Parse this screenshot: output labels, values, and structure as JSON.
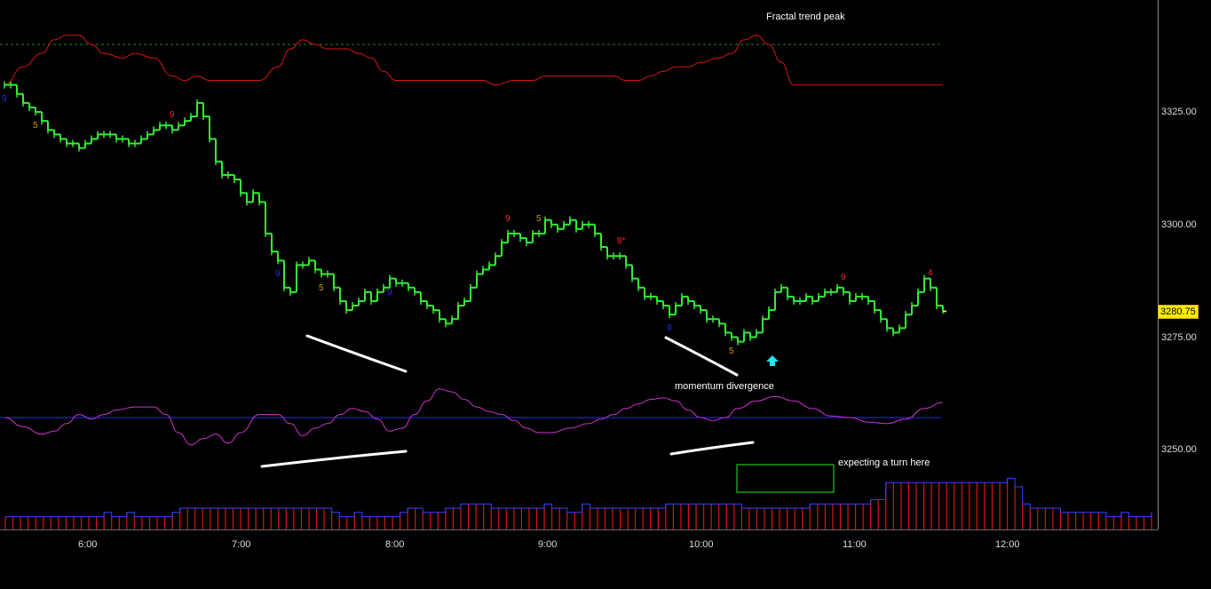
{
  "chart_data": {
    "type": "line",
    "instrument_type": "intraday price bars with oscillator and volume panels",
    "price_axis": {
      "ticks": [
        3325,
        3300,
        3275,
        3250
      ],
      "tick_labels": [
        "3325.00",
        "3300.00",
        "3275.00",
        "3250.00"
      ]
    },
    "time_axis": {
      "tick_labels": [
        "6:00",
        "7:00",
        "8:00",
        "9:00",
        "10:00",
        "11:00",
        "12:00"
      ]
    },
    "last_price_label": "3280.75",
    "last_price": 3280.75,
    "colors": {
      "price": "#33ee33",
      "trend_line": "#d81515",
      "oscillator": "#cc33cc",
      "zero_line": "#2a2aee",
      "volume": "#d81515",
      "volume_cap": "#3344ff",
      "annotation": "#ffffff",
      "box": "#1a9a1a",
      "arrow": "#22e6f0",
      "price_box": "#ffeb00"
    },
    "price_series": [
      [
        0,
        3331
      ],
      [
        1,
        3331
      ],
      [
        2,
        3329
      ],
      [
        3,
        3327
      ],
      [
        4,
        3326
      ],
      [
        5,
        3325
      ],
      [
        6,
        3323
      ],
      [
        7,
        3321
      ],
      [
        8,
        3320
      ],
      [
        9,
        3319
      ],
      [
        10,
        3318
      ],
      [
        11,
        3318
      ],
      [
        12,
        3317
      ],
      [
        13,
        3318
      ],
      [
        14,
        3319
      ],
      [
        15,
        3320
      ],
      [
        16,
        3320
      ],
      [
        17,
        3320
      ],
      [
        18,
        3319
      ],
      [
        19,
        3319
      ],
      [
        20,
        3318
      ],
      [
        21,
        3318
      ],
      [
        22,
        3319
      ],
      [
        23,
        3320
      ],
      [
        24,
        3321
      ],
      [
        25,
        3322
      ],
      [
        26,
        3322
      ],
      [
        27,
        3321
      ],
      [
        28,
        3322
      ],
      [
        29,
        3323
      ],
      [
        30,
        3324
      ],
      [
        31,
        3327
      ],
      [
        32,
        3324
      ],
      [
        33,
        3319
      ],
      [
        34,
        3314
      ],
      [
        35,
        3311
      ],
      [
        36,
        3311
      ],
      [
        37,
        3310
      ],
      [
        38,
        3307
      ],
      [
        39,
        3305
      ],
      [
        40,
        3307
      ],
      [
        41,
        3305
      ],
      [
        42,
        3298
      ],
      [
        43,
        3294
      ],
      [
        44,
        3292
      ],
      [
        45,
        3286
      ],
      [
        46,
        3285
      ],
      [
        47,
        3291
      ],
      [
        48,
        3291
      ],
      [
        49,
        3292
      ],
      [
        50,
        3290
      ],
      [
        51,
        3289
      ],
      [
        52,
        3289
      ],
      [
        53,
        3286
      ],
      [
        54,
        3283
      ],
      [
        55,
        3281
      ],
      [
        56,
        3282
      ],
      [
        57,
        3283
      ],
      [
        58,
        3285
      ],
      [
        59,
        3283
      ],
      [
        60,
        3285
      ],
      [
        61,
        3286
      ],
      [
        62,
        3288
      ],
      [
        63,
        3287
      ],
      [
        64,
        3287
      ],
      [
        65,
        3286
      ],
      [
        66,
        3285
      ],
      [
        67,
        3283
      ],
      [
        68,
        3282
      ],
      [
        69,
        3281
      ],
      [
        70,
        3279
      ],
      [
        71,
        3278
      ],
      [
        72,
        3279
      ],
      [
        73,
        3282
      ],
      [
        74,
        3283
      ],
      [
        75,
        3286
      ],
      [
        76,
        3289
      ],
      [
        77,
        3290
      ],
      [
        78,
        3291
      ],
      [
        79,
        3293
      ],
      [
        80,
        3296
      ],
      [
        81,
        3298
      ],
      [
        82,
        3298
      ],
      [
        83,
        3297
      ],
      [
        84,
        3296
      ],
      [
        85,
        3298
      ],
      [
        86,
        3298
      ],
      [
        87,
        3301
      ],
      [
        88,
        3300
      ],
      [
        89,
        3299
      ],
      [
        90,
        3300
      ],
      [
        91,
        3301
      ],
      [
        92,
        3299
      ],
      [
        93,
        3300
      ],
      [
        94,
        3300
      ],
      [
        95,
        3298
      ],
      [
        96,
        3295
      ],
      [
        97,
        3293
      ],
      [
        98,
        3293
      ],
      [
        99,
        3293
      ],
      [
        100,
        3291
      ],
      [
        101,
        3288
      ],
      [
        102,
        3286
      ],
      [
        103,
        3284
      ],
      [
        104,
        3284
      ],
      [
        105,
        3283
      ],
      [
        106,
        3282
      ],
      [
        107,
        3280
      ],
      [
        108,
        3282
      ],
      [
        109,
        3284
      ],
      [
        110,
        3283
      ],
      [
        111,
        3282
      ],
      [
        112,
        3281
      ],
      [
        113,
        3279
      ],
      [
        114,
        3279
      ],
      [
        115,
        3278
      ],
      [
        116,
        3276
      ],
      [
        117,
        3275
      ],
      [
        118,
        3274
      ],
      [
        119,
        3276
      ],
      [
        120,
        3275
      ],
      [
        121,
        3276
      ],
      [
        122,
        3279
      ],
      [
        123,
        3281
      ],
      [
        124,
        3285
      ],
      [
        125,
        3286
      ],
      [
        126,
        3284
      ],
      [
        127,
        3283
      ],
      [
        128,
        3283
      ],
      [
        129,
        3284
      ],
      [
        130,
        3283
      ],
      [
        131,
        3284
      ],
      [
        132,
        3285
      ],
      [
        133,
        3285
      ],
      [
        134,
        3286
      ],
      [
        135,
        3285
      ],
      [
        136,
        3283
      ],
      [
        137,
        3284
      ],
      [
        138,
        3284
      ],
      [
        139,
        3283
      ],
      [
        140,
        3281
      ],
      [
        141,
        3279
      ],
      [
        142,
        3277
      ],
      [
        143,
        3276
      ],
      [
        144,
        3277
      ],
      [
        145,
        3280
      ],
      [
        146,
        3282
      ],
      [
        147,
        3285
      ],
      [
        148,
        3288
      ],
      [
        149,
        3286
      ],
      [
        150,
        3282
      ],
      [
        151,
        3281
      ]
    ],
    "trend_line_series": [
      [
        0,
        3331
      ],
      [
        3,
        3335
      ],
      [
        6,
        3338
      ],
      [
        8,
        3341
      ],
      [
        10,
        3342
      ],
      [
        12,
        3342
      ],
      [
        14,
        3340
      ],
      [
        16,
        3338
      ],
      [
        19,
        3337
      ],
      [
        21,
        3338
      ],
      [
        24,
        3337
      ],
      [
        27,
        3333
      ],
      [
        29,
        3332
      ],
      [
        31,
        3333
      ],
      [
        33,
        3332
      ],
      [
        36,
        3332
      ],
      [
        38,
        3332
      ],
      [
        41,
        3332
      ],
      [
        44,
        3335
      ],
      [
        46,
        3339
      ],
      [
        48,
        3341
      ],
      [
        50,
        3340
      ],
      [
        52,
        3339
      ],
      [
        55,
        3339
      ],
      [
        57,
        3338
      ],
      [
        59,
        3337
      ],
      [
        61,
        3334
      ],
      [
        63,
        3332
      ],
      [
        65,
        3332
      ],
      [
        67,
        3332
      ],
      [
        69,
        3332
      ],
      [
        71,
        3332
      ],
      [
        73,
        3332
      ],
      [
        75,
        3332
      ],
      [
        77,
        3332
      ],
      [
        79,
        3331
      ],
      [
        82,
        3332
      ],
      [
        85,
        3332
      ],
      [
        87,
        3333
      ],
      [
        89,
        3333
      ],
      [
        92,
        3333
      ],
      [
        94,
        3333
      ],
      [
        96,
        3333
      ],
      [
        98,
        3333
      ],
      [
        100,
        3332
      ],
      [
        102,
        3332
      ],
      [
        104,
        3333
      ],
      [
        106,
        3334
      ],
      [
        108,
        3335
      ],
      [
        110,
        3335
      ],
      [
        112,
        3336
      ],
      [
        115,
        3337
      ],
      [
        117,
        3338
      ],
      [
        119,
        3341
      ],
      [
        121,
        3342
      ],
      [
        123,
        3340
      ],
      [
        125,
        3336
      ],
      [
        127,
        3331
      ],
      [
        129,
        3331
      ],
      [
        132,
        3331
      ],
      [
        135,
        3331
      ],
      [
        138,
        3331
      ],
      [
        141,
        3331
      ],
      [
        144,
        3331
      ],
      [
        147,
        3331
      ],
      [
        151,
        3331
      ]
    ],
    "trend_reference": 3340,
    "oscillator_series": [
      [
        0,
        0.0
      ],
      [
        3,
        -0.3
      ],
      [
        6,
        -0.55
      ],
      [
        8,
        -0.45
      ],
      [
        10,
        -0.2
      ],
      [
        12,
        0.1
      ],
      [
        14,
        -0.05
      ],
      [
        16,
        0.1
      ],
      [
        18,
        0.25
      ],
      [
        21,
        0.35
      ],
      [
        24,
        0.35
      ],
      [
        26,
        0.1
      ],
      [
        28,
        -0.5
      ],
      [
        30,
        -0.9
      ],
      [
        32,
        -0.7
      ],
      [
        34,
        -0.55
      ],
      [
        36,
        -0.85
      ],
      [
        38,
        -0.5
      ],
      [
        41,
        0.1
      ],
      [
        44,
        0.1
      ],
      [
        46,
        -0.2
      ],
      [
        48,
        -0.6
      ],
      [
        50,
        -0.35
      ],
      [
        52,
        -0.2
      ],
      [
        54,
        0.1
      ],
      [
        56,
        0.3
      ],
      [
        58,
        0.2
      ],
      [
        60,
        -0.05
      ],
      [
        62,
        -0.45
      ],
      [
        64,
        -0.35
      ],
      [
        66,
        0.1
      ],
      [
        68,
        0.55
      ],
      [
        70,
        0.95
      ],
      [
        72,
        0.85
      ],
      [
        74,
        0.6
      ],
      [
        76,
        0.35
      ],
      [
        78,
        0.2
      ],
      [
        80,
        0.1
      ],
      [
        82,
        -0.1
      ],
      [
        84,
        -0.35
      ],
      [
        86,
        -0.5
      ],
      [
        88,
        -0.5
      ],
      [
        91,
        -0.35
      ],
      [
        94,
        -0.2
      ],
      [
        96,
        -0.05
      ],
      [
        98,
        0.1
      ],
      [
        100,
        0.3
      ],
      [
        102,
        0.45
      ],
      [
        104,
        0.6
      ],
      [
        106,
        0.65
      ],
      [
        108,
        0.55
      ],
      [
        110,
        0.25
      ],
      [
        112,
        0.0
      ],
      [
        114,
        -0.1
      ],
      [
        116,
        0.0
      ],
      [
        118,
        0.3
      ],
      [
        121,
        0.55
      ],
      [
        124,
        0.7
      ],
      [
        127,
        0.55
      ],
      [
        130,
        0.3
      ],
      [
        133,
        0.05
      ],
      [
        136,
        0.0
      ],
      [
        139,
        -0.15
      ],
      [
        142,
        -0.2
      ],
      [
        145,
        -0.05
      ],
      [
        148,
        0.3
      ],
      [
        151,
        0.5
      ]
    ],
    "volume_series": [
      3,
      3,
      3,
      3,
      3,
      3,
      3,
      3,
      3,
      3,
      3,
      3,
      3,
      4,
      3,
      3,
      4,
      3,
      3,
      3,
      3,
      3,
      4,
      5,
      5,
      5,
      5,
      5,
      5,
      5,
      5,
      5,
      5,
      5,
      5,
      5,
      5,
      5,
      5,
      5,
      5,
      5,
      5,
      4,
      3,
      3,
      4,
      3,
      3,
      3,
      3,
      3,
      4,
      5,
      5,
      4,
      4,
      4,
      5,
      5,
      6,
      6,
      6,
      6,
      5,
      5,
      5,
      5,
      5,
      5,
      5,
      6,
      5,
      5,
      4,
      4,
      6,
      5,
      5,
      5,
      5,
      5,
      5,
      5,
      5,
      5,
      5,
      6,
      6,
      6,
      6,
      6,
      6,
      6,
      6,
      6,
      6,
      5,
      5,
      5,
      5,
      5,
      5,
      5,
      5,
      5,
      6,
      6,
      6,
      6,
      6,
      6,
      6,
      6,
      7,
      7,
      11,
      11,
      11,
      11,
      11,
      11,
      11,
      11,
      11,
      11,
      11,
      11,
      11,
      11,
      11,
      11,
      12,
      10,
      6,
      5,
      5,
      5,
      5,
      4,
      4,
      4,
      4,
      4,
      4,
      3,
      3,
      4,
      3,
      3,
      3,
      4,
      4,
      4,
      4,
      4,
      4,
      4,
      4,
      4,
      6,
      7,
      7
    ],
    "setup_counts": [
      {
        "text": "9",
        "bar": 0,
        "color": "#2a2aee",
        "pos": "below"
      },
      {
        "text": "5",
        "bar": 5,
        "color": "#c8a000",
        "pos": "below"
      },
      {
        "text": "9",
        "bar": 27,
        "color": "#ff2222",
        "pos": "above"
      },
      {
        "text": "9",
        "bar": 44,
        "color": "#2a2aee",
        "pos": "below"
      },
      {
        "text": "5",
        "bar": 51,
        "color": "#c8a000",
        "pos": "below"
      },
      {
        "text": "9",
        "bar": 62,
        "color": "#2a2aee",
        "pos": "below"
      },
      {
        "text": "9",
        "bar": 81,
        "color": "#ff2222",
        "pos": "above"
      },
      {
        "text": "5",
        "bar": 86,
        "color": "#c8a000",
        "pos": "above"
      },
      {
        "text": "8*",
        "bar": 99,
        "color": "#ff2222",
        "pos": "above"
      },
      {
        "text": "9",
        "bar": 107,
        "color": "#2a2aee",
        "pos": "below"
      },
      {
        "text": "5",
        "bar": 117,
        "color": "#c8a000",
        "pos": "below"
      },
      {
        "text": "9",
        "bar": 135,
        "color": "#ff2222",
        "pos": "above"
      },
      {
        "text": "4",
        "bar": 149,
        "color": "#ff2222",
        "pos": "above"
      }
    ],
    "annotations": {
      "trend_peak": "Fractal trend peak",
      "divergence": "momentum divergence",
      "turn": "expecting a turn here"
    }
  }
}
